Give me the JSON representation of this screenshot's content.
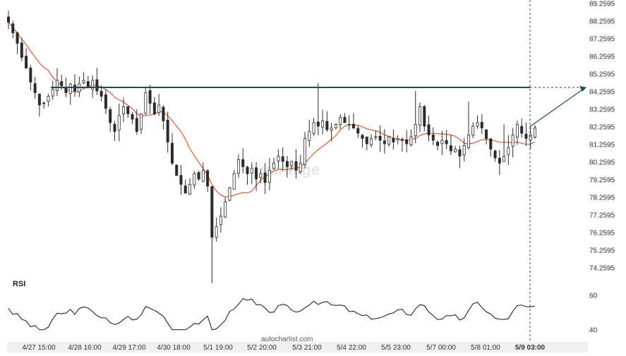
{
  "chart_data": [
    {
      "type": "candlestick",
      "y_ticks": [
        "89.2595",
        "88.2595",
        "87.2595",
        "86.2595",
        "85.2595",
        "84.2595",
        "83.2595",
        "82.2595",
        "81.2595",
        "80.2595",
        "79.2595",
        "78.2595",
        "77.2595",
        "76.2595",
        "75.2595",
        "74.2595"
      ],
      "ylim": [
        74.2595,
        89.2595
      ],
      "x_ticks": [
        "4/27 15:00",
        "4/28 16:00",
        "4/29 17:00",
        "4/30 18:00",
        "5/1 19:00",
        "5/2 20:00",
        "5/3 21:00",
        "5/4 22:00",
        "5/5 23:00",
        "5/7 00:00",
        "5/8 01:00",
        "5/9 03:00"
      ],
      "x_tick_bold": "5/9 03:00",
      "resistance_level": 84.5,
      "close": [
        88.2,
        87.6,
        87.0,
        86.2,
        85.6,
        84.8,
        84.2,
        83.5,
        83.6,
        84.0,
        84.4,
        84.9,
        84.6,
        84.2,
        84.7,
        84.3,
        84.7,
        84.9,
        84.5,
        84.9,
        84.3,
        84.0,
        83.3,
        82.5,
        82.0,
        82.9,
        83.4,
        83.0,
        82.7,
        82.0,
        83.0,
        84.2,
        83.6,
        83.0,
        83.5,
        82.6,
        81.4,
        80.2,
        79.5,
        79.0,
        78.5,
        79.0,
        79.6,
        79.3,
        79.8,
        78.9,
        76.0,
        76.6,
        77.2,
        78.0,
        78.8,
        79.6,
        80.4,
        80.0,
        79.6,
        79.9,
        79.3,
        79.6,
        79.1,
        79.8,
        80.2,
        80.6,
        80.3,
        80.0,
        80.3,
        79.8,
        80.2,
        81.6,
        82.0,
        82.5,
        82.3,
        82.6,
        82.1,
        82.2,
        82.4,
        82.8,
        82.5,
        82.4,
        82.2,
        81.9,
        81.6,
        81.3,
        81.6,
        81.7,
        81.5,
        81.3,
        81.7,
        81.4,
        81.6,
        81.5,
        81.3,
        81.7,
        82.4,
        83.4,
        82.3,
        81.8,
        81.5,
        81.2,
        81.5,
        81.3,
        80.9,
        81.0,
        80.6,
        81.2,
        81.8,
        82.3,
        82.5,
        82.2,
        81.6,
        81.0,
        80.5,
        80.2,
        80.6,
        81.1,
        81.8,
        82.4,
        81.9,
        81.6,
        81.8,
        82.2
      ]
    },
    {
      "type": "line",
      "title": "RSI",
      "y_ticks": [
        "60",
        "40"
      ],
      "ylim": [
        35,
        65
      ],
      "watermark": "autochartist.com"
    }
  ]
}
